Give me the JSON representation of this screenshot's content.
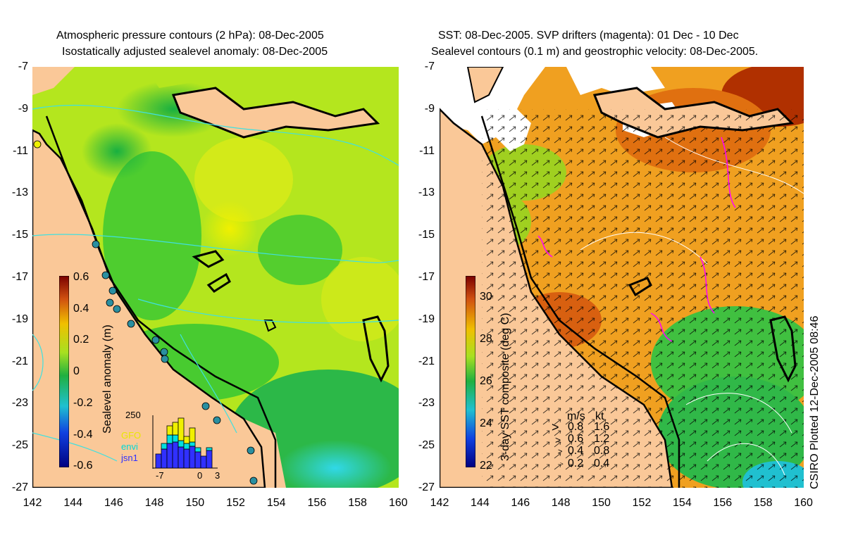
{
  "left_panel": {
    "title_line1": "Atmospheric pressure contours (2 hPa): 08-Dec-2005",
    "title_line2": "Isostatically adjusted sealevel anomaly: 08-Dec-2005",
    "colorbar_label": "Sealevel anomaly (m)",
    "colorbar_ticks": [
      "0.6",
      "0.4",
      "0.2",
      "0",
      "-0.2",
      "-0.4",
      "-0.6"
    ],
    "histogram": {
      "ymax_label": "250",
      "legend": [
        {
          "label": "GFO",
          "color": "#f0f000"
        },
        {
          "label": "envi",
          "color": "#00e0e0"
        },
        {
          "label": "jsn1",
          "color": "#3030ff"
        }
      ],
      "x_ticks": [
        "-7",
        "0",
        "3"
      ]
    }
  },
  "right_panel": {
    "title_line1": "SST: 08-Dec-2005. SVP drifters (magenta): 01 Dec - 10 Dec",
    "title_line2": "Sealevel contours (0.1 m) and geostrophic velocity: 08-Dec-2005.",
    "colorbar_label": "3-day SST composite (deg C)",
    "colorbar_ticks": [
      "30",
      "28",
      "26",
      "24",
      "22"
    ],
    "velocity_legend": {
      "header_ms": "m/s",
      "header_kt": "kt",
      "rows": [
        {
          "ms": "0.8",
          "kt": "1.6"
        },
        {
          "ms": "0.6",
          "kt": "1.2"
        },
        {
          "ms": "0.4",
          "kt": "0.8"
        },
        {
          "ms": "0.2",
          "kt": "0.4"
        }
      ]
    }
  },
  "axes": {
    "lat_ticks": [
      "-7",
      "-9",
      "-11",
      "-13",
      "-15",
      "-17",
      "-19",
      "-21",
      "-23",
      "-25",
      "-27"
    ],
    "lon_ticks": [
      "142",
      "144",
      "146",
      "148",
      "150",
      "152",
      "154",
      "156",
      "158",
      "160"
    ]
  },
  "credit": "CSIRO Plotted 12-Dec-2005 08:46",
  "colors": {
    "land": "#fac898",
    "ocean_green": "#3cc832",
    "ocean_yellowgreen": "#b4e61e",
    "sst_orange": "#f08c14",
    "drifter": "#ff00ff",
    "pressure_contour": "#40e0e0"
  }
}
